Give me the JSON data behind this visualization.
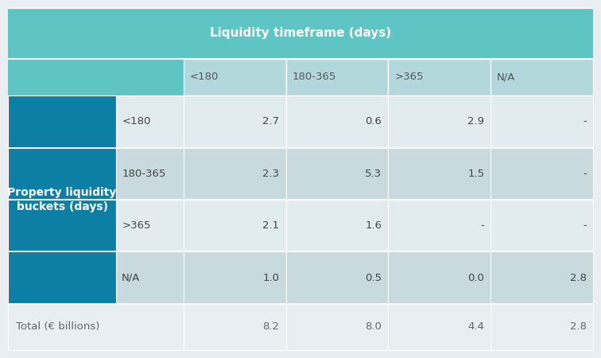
{
  "title": "Liquidity timeframe (days)",
  "col_headers": [
    "<180",
    "180-365",
    ">365",
    "N/A"
  ],
  "row_headers": [
    "<180",
    "180-365",
    ">365",
    "N/A"
  ],
  "row_label": "Property liquidity\nbuckets (days)",
  "total_label": "Total (€ billions)",
  "data": [
    [
      "2.7",
      "0.6",
      "2.9",
      "-"
    ],
    [
      "2.3",
      "5.3",
      "1.5",
      "-"
    ],
    [
      "2.1",
      "1.6",
      "-",
      "-"
    ],
    [
      "1.0",
      "0.5",
      "0.0",
      "2.8"
    ]
  ],
  "totals": [
    "8.2",
    "8.0",
    "4.4",
    "2.8"
  ],
  "color_header_bg": "#5ec4c4",
  "color_col_header_bg": "#b2d8db",
  "color_row_header_bg": "#0d7fa5",
  "color_data_row0": "#e2ecef",
  "color_data_row1": "#c9dadf",
  "color_data_row2": "#e2ecef",
  "color_data_row3": "#c9dadf",
  "color_total_bg": "#e8eef1",
  "color_outer_bg": "#e8eef1",
  "color_header_text": "#ffffff",
  "color_row_header_text": "#ffffff",
  "color_data_text": "#444444",
  "color_total_text": "#666666",
  "col_header_text_color": "#555555",
  "figsize": [
    7.56,
    4.5
  ],
  "dpi": 100
}
